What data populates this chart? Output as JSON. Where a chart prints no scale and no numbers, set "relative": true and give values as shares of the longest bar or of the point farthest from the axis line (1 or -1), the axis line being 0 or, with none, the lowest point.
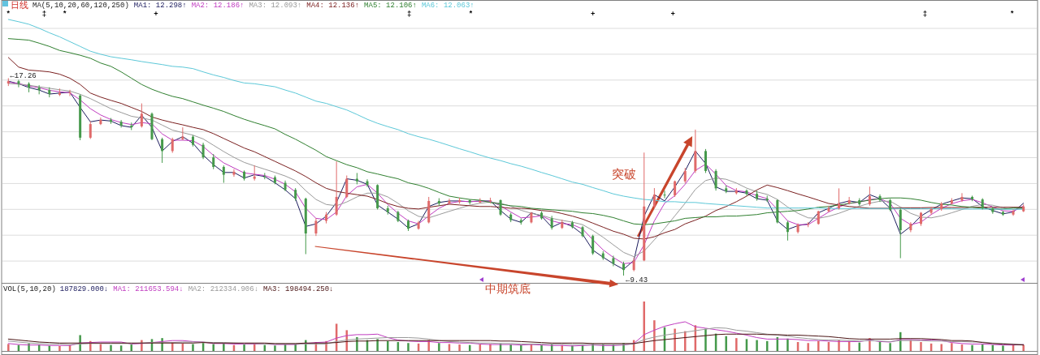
{
  "chart_data": [
    {
      "type": "candlestick",
      "title": "日线",
      "subtitle": "MA(5,10,20,60,120,250)",
      "legend": "top left",
      "grid": "y",
      "categories": [
        null,
        null,
        null,
        null,
        null,
        null,
        null,
        null,
        null,
        null,
        null,
        null,
        null,
        null,
        null,
        null,
        null,
        null,
        null,
        null,
        null,
        null,
        null,
        null,
        null,
        null,
        null,
        null,
        null,
        null,
        null,
        null,
        null,
        null,
        null,
        null,
        null,
        null,
        null,
        null,
        null,
        null,
        null,
        null,
        null,
        null,
        null,
        null,
        null,
        null,
        null,
        null,
        null,
        null,
        null,
        null,
        null,
        null,
        null,
        null,
        null,
        null,
        null,
        null,
        null,
        null,
        null,
        null,
        null,
        null,
        null,
        null,
        null,
        null,
        null,
        null,
        null,
        null,
        null,
        null,
        null,
        null,
        null,
        null,
        null,
        null,
        null,
        null,
        null,
        null,
        null,
        null,
        null,
        null,
        null,
        null,
        null,
        null,
        null,
        null
      ],
      "ohlc": [
        [
          17.05,
          17.26,
          16.95,
          17.14
        ],
        [
          17.14,
          17.2,
          16.9,
          17.04
        ],
        [
          17.04,
          17.1,
          16.7,
          16.89
        ],
        [
          16.89,
          16.98,
          16.62,
          16.79
        ],
        [
          16.79,
          16.9,
          16.5,
          16.63
        ],
        [
          16.6,
          16.85,
          16.55,
          16.67
        ],
        [
          16.67,
          16.8,
          16.55,
          16.7
        ],
        [
          16.57,
          16.62,
          14.8,
          14.9
        ],
        [
          14.9,
          15.55,
          14.85,
          15.44
        ],
        [
          15.44,
          15.7,
          15.4,
          15.6
        ],
        [
          15.6,
          15.68,
          15.45,
          15.53
        ],
        [
          15.53,
          15.6,
          15.3,
          15.38
        ],
        [
          15.38,
          15.5,
          15.2,
          15.31
        ],
        [
          15.35,
          16.26,
          15.3,
          15.85
        ],
        [
          15.85,
          15.9,
          14.8,
          14.84
        ],
        [
          14.84,
          14.9,
          13.9,
          14.37
        ],
        [
          14.37,
          14.9,
          14.3,
          14.84
        ],
        [
          14.84,
          15.31,
          14.8,
          14.94
        ],
        [
          14.94,
          15.0,
          14.55,
          14.62
        ],
        [
          14.62,
          14.7,
          14.05,
          14.12
        ],
        [
          14.12,
          14.25,
          13.65,
          13.74
        ],
        [
          13.74,
          13.8,
          13.11,
          13.43
        ],
        [
          13.43,
          13.65,
          13.35,
          13.55
        ],
        [
          13.55,
          13.6,
          13.2,
          13.27
        ],
        [
          13.27,
          13.8,
          13.2,
          13.36
        ],
        [
          13.36,
          13.5,
          13.25,
          13.33
        ],
        [
          13.33,
          13.4,
          13.05,
          13.11
        ],
        [
          13.11,
          13.2,
          12.78,
          12.83
        ],
        [
          12.83,
          12.9,
          12.4,
          12.48
        ],
        [
          12.48,
          12.52,
          10.28,
          11.1
        ],
        [
          11.1,
          11.7,
          11.0,
          11.6
        ],
        [
          11.6,
          11.95,
          11.5,
          11.85
        ],
        [
          11.85,
          13.96,
          11.8,
          12.55
        ],
        [
          12.55,
          13.4,
          12.5,
          13.27
        ],
        [
          13.27,
          13.5,
          13.05,
          13.17
        ],
        [
          13.17,
          13.25,
          12.95,
          13.02
        ],
        [
          13.02,
          13.05,
          12.05,
          12.1
        ],
        [
          12.1,
          12.2,
          11.85,
          11.95
        ],
        [
          11.95,
          12.0,
          11.55,
          11.6
        ],
        [
          11.6,
          11.65,
          11.2,
          11.29
        ],
        [
          11.29,
          11.6,
          11.25,
          11.54
        ],
        [
          11.54,
          12.55,
          11.5,
          12.39
        ],
        [
          12.39,
          12.5,
          12.2,
          12.29
        ],
        [
          12.29,
          12.48,
          12.25,
          12.39
        ],
        [
          12.35,
          12.52,
          12.28,
          12.42
        ],
        [
          12.42,
          12.45,
          12.25,
          12.33
        ],
        [
          12.33,
          12.5,
          12.3,
          12.39
        ],
        [
          12.39,
          12.52,
          12.3,
          12.42
        ],
        [
          12.42,
          12.45,
          11.8,
          11.85
        ],
        [
          11.85,
          11.92,
          11.55,
          11.63
        ],
        [
          11.63,
          11.7,
          11.45,
          11.54
        ],
        [
          11.54,
          11.95,
          11.5,
          11.92
        ],
        [
          11.92,
          11.98,
          11.65,
          11.7
        ],
        [
          11.7,
          11.8,
          11.25,
          11.32
        ],
        [
          11.32,
          11.65,
          11.28,
          11.54
        ],
        [
          11.54,
          11.6,
          11.3,
          11.35
        ],
        [
          11.35,
          11.4,
          10.95,
          11.0
        ],
        [
          11.0,
          11.05,
          10.25,
          10.31
        ],
        [
          10.31,
          10.4,
          10.05,
          10.12
        ],
        [
          10.12,
          10.22,
          9.8,
          9.9
        ],
        [
          9.9,
          9.98,
          9.43,
          9.65
        ],
        [
          9.65,
          10.15,
          9.6,
          10.03
        ],
        [
          10.03,
          14.31,
          10.0,
          12.17
        ],
        [
          12.17,
          12.9,
          12.1,
          12.64
        ],
        [
          12.64,
          12.8,
          12.5,
          12.61
        ],
        [
          12.61,
          13.2,
          12.55,
          13.17
        ],
        [
          13.17,
          13.7,
          13.1,
          13.58
        ],
        [
          13.58,
          15.22,
          13.5,
          14.37
        ],
        [
          14.37,
          14.45,
          13.5,
          13.58
        ],
        [
          13.58,
          13.65,
          12.8,
          12.89
        ],
        [
          12.89,
          13.0,
          12.7,
          12.77
        ],
        [
          12.7,
          12.9,
          12.65,
          12.8
        ],
        [
          12.8,
          12.85,
          12.6,
          12.67
        ],
        [
          12.67,
          12.8,
          12.4,
          12.48
        ],
        [
          12.48,
          12.6,
          12.35,
          12.42
        ],
        [
          12.42,
          12.45,
          11.5,
          11.54
        ],
        [
          11.54,
          11.6,
          10.82,
          11.16
        ],
        [
          11.16,
          11.5,
          11.1,
          11.45
        ],
        [
          11.45,
          11.55,
          11.35,
          11.48
        ],
        [
          11.48,
          12.0,
          11.45,
          11.98
        ],
        [
          11.98,
          12.2,
          11.95,
          12.1
        ],
        [
          12.1,
          12.89,
          12.05,
          12.29
        ],
        [
          12.29,
          12.55,
          12.25,
          12.42
        ],
        [
          12.42,
          12.5,
          12.2,
          12.26
        ],
        [
          12.26,
          12.96,
          12.2,
          12.58
        ],
        [
          12.58,
          12.65,
          12.35,
          12.42
        ],
        [
          12.42,
          12.48,
          11.98,
          12.04
        ],
        [
          12.04,
          12.1,
          10.12,
          11.23
        ],
        [
          11.23,
          11.55,
          11.15,
          11.48
        ],
        [
          11.48,
          11.95,
          11.4,
          11.92
        ],
        [
          11.92,
          12.15,
          11.85,
          12.07
        ],
        [
          12.07,
          12.35,
          12.0,
          12.29
        ],
        [
          12.29,
          12.5,
          12.25,
          12.42
        ],
        [
          12.42,
          12.7,
          12.35,
          12.55
        ],
        [
          12.55,
          12.6,
          12.38,
          12.45
        ],
        [
          12.45,
          12.5,
          12.05,
          12.1
        ],
        [
          12.1,
          12.15,
          11.88,
          11.95
        ],
        [
          11.95,
          12.0,
          11.8,
          11.85
        ],
        [
          11.85,
          12.05,
          11.8,
          11.98
        ],
        [
          11.98,
          12.25,
          11.95,
          12.17
        ]
      ],
      "colors": [
        "#e06a6a",
        "#45994b",
        "#45994b",
        "#45994b",
        "#45994b",
        "#e06a6a",
        "#e06a6a",
        "#45994b",
        "#e06a6a",
        "#e06a6a",
        "#45994b",
        "#45994b",
        "#45994b",
        "#e06a6a",
        "#45994b",
        "#45994b",
        "#e06a6a",
        "#e06a6a",
        "#45994b",
        "#45994b",
        "#45994b",
        "#45994b",
        "#e06a6a",
        "#45994b",
        "#e06a6a",
        "#45994b",
        "#45994b",
        "#45994b",
        "#45994b",
        "#45994b",
        "#e06a6a",
        "#e06a6a",
        "#e06a6a",
        "#e06a6a",
        "#45994b",
        "#45994b",
        "#45994b",
        "#45994b",
        "#45994b",
        "#45994b",
        "#e06a6a",
        "#e06a6a",
        "#45994b",
        "#e06a6a",
        "#e06a6a",
        "#45994b",
        "#e06a6a",
        "#e06a6a",
        "#45994b",
        "#45994b",
        "#45994b",
        "#e06a6a",
        "#45994b",
        "#45994b",
        "#e06a6a",
        "#45994b",
        "#45994b",
        "#45994b",
        "#45994b",
        "#45994b",
        "#45994b",
        "#e06a6a",
        "#e06a6a",
        "#e06a6a",
        "#45994b",
        "#e06a6a",
        "#e06a6a",
        "#e06a6a",
        "#45994b",
        "#45994b",
        "#45994b",
        "#e06a6a",
        "#45994b",
        "#45994b",
        "#45994b",
        "#45994b",
        "#45994b",
        "#e06a6a",
        "#e06a6a",
        "#e06a6a",
        "#e06a6a",
        "#e06a6a",
        "#e06a6a",
        "#45994b",
        "#e06a6a",
        "#45994b",
        "#45994b",
        "#45994b",
        "#e06a6a",
        "#e06a6a",
        "#e06a6a",
        "#e06a6a",
        "#e06a6a",
        "#e06a6a",
        "#45994b",
        "#45994b",
        "#45994b",
        "#45994b",
        "#e06a6a",
        "#e06a6a"
      ],
      "series": [
        {
          "type": "line",
          "name": "MA1: 12.298↑",
          "color": "#1c1c5e",
          "values": [
            17.14,
            17.04,
            16.89,
            16.79,
            16.63,
            16.67,
            16.7,
            16.1,
            15.53,
            15.6,
            15.56,
            15.38,
            15.31,
            15.79,
            15.31,
            14.37,
            14.75,
            14.94,
            14.68,
            14.21,
            13.83,
            13.52,
            13.52,
            13.3,
            13.43,
            13.36,
            13.11,
            12.83,
            12.48,
            11.38,
            11.48,
            11.79,
            12.33,
            13.27,
            13.21,
            13.05,
            12.23,
            11.95,
            11.67,
            11.32,
            11.48,
            12.17,
            12.33,
            12.39,
            12.39,
            12.36,
            12.39,
            12.39,
            12.01,
            11.67,
            11.54,
            11.92,
            11.79,
            11.35,
            11.54,
            11.38,
            11.07,
            10.44,
            10.16,
            9.9,
            9.68,
            10.03,
            11.79,
            12.64,
            12.39,
            12.95,
            13.58,
            14.37,
            13.87,
            12.95,
            12.77,
            12.77,
            12.7,
            12.48,
            12.42,
            11.6,
            11.26,
            11.41,
            11.48,
            11.92,
            12.1,
            12.29,
            12.39,
            12.33,
            12.64,
            12.48,
            12.1,
            11.07,
            11.38,
            11.79,
            12.04,
            12.26,
            12.39,
            12.51,
            12.48,
            12.17,
            12.01,
            11.88,
            11.95,
            12.3
          ]
        },
        {
          "type": "line",
          "name": "MA2: 12.186↑",
          "color": "#c03cc0",
          "values": [
            17.1,
            17.05,
            16.95,
            16.88,
            16.78,
            16.72,
            16.68,
            16.4,
            16.05,
            15.8,
            15.62,
            15.5,
            15.42,
            15.5,
            15.45,
            15.05,
            14.8,
            14.8,
            14.78,
            14.55,
            14.2,
            13.9,
            13.7,
            13.5,
            13.45,
            13.4,
            13.25,
            13.05,
            12.75,
            12.1,
            11.7,
            11.65,
            11.95,
            12.6,
            12.95,
            13.05,
            12.7,
            12.25,
            11.9,
            11.6,
            11.48,
            11.8,
            12.1,
            12.3,
            12.37,
            12.37,
            12.38,
            12.38,
            12.2,
            11.95,
            11.72,
            11.75,
            11.8,
            11.6,
            11.5,
            11.45,
            11.28,
            10.85,
            10.45,
            10.15,
            9.9,
            9.95,
            10.65,
            11.6,
            12.3,
            12.6,
            13.05,
            13.6,
            13.85,
            13.45,
            13.0,
            12.8,
            12.75,
            12.6,
            12.48,
            12.05,
            11.6,
            11.45,
            11.45,
            11.7,
            11.95,
            12.15,
            12.3,
            12.34,
            12.45,
            12.48,
            12.3,
            11.7,
            11.45,
            11.55,
            11.85,
            12.1,
            12.28,
            12.4,
            12.45,
            12.32,
            12.15,
            12.0,
            11.98,
            12.19
          ]
        },
        {
          "type": "line",
          "name": "MA3: 12.093↑",
          "color": "#9a9a9a",
          "values": [
            17.05,
            17.02,
            16.98,
            16.92,
            16.86,
            16.8,
            16.75,
            16.62,
            16.45,
            16.25,
            16.05,
            15.9,
            15.75,
            15.68,
            15.6,
            15.4,
            15.2,
            15.1,
            15.0,
            14.85,
            14.6,
            14.35,
            14.12,
            13.92,
            13.78,
            13.65,
            13.52,
            13.38,
            13.2,
            12.8,
            12.45,
            12.25,
            12.2,
            12.35,
            12.55,
            12.7,
            12.7,
            12.55,
            12.3,
            12.0,
            11.78,
            11.72,
            11.85,
            11.98,
            12.1,
            12.22,
            12.3,
            12.35,
            12.3,
            12.18,
            12.02,
            11.9,
            11.82,
            11.7,
            11.62,
            11.55,
            11.45,
            11.22,
            10.95,
            10.65,
            10.35,
            10.18,
            10.4,
            10.85,
            11.3,
            11.8,
            12.3,
            12.85,
            13.2,
            13.3,
            13.25,
            13.1,
            12.9,
            12.75,
            12.65,
            12.45,
            12.15,
            11.9,
            11.72,
            11.7,
            11.78,
            11.9,
            12.05,
            12.18,
            12.3,
            12.38,
            12.38,
            12.15,
            11.9,
            11.75,
            11.72,
            11.8,
            11.92,
            12.05,
            12.18,
            12.25,
            12.22,
            12.12,
            12.05,
            12.09
          ]
        },
        {
          "type": "line",
          "name": "MA4: 12.136↑",
          "color": "#7a1f1f",
          "values": [
            18.08,
            17.7,
            17.58,
            17.55,
            17.51,
            17.42,
            17.26,
            17.01,
            16.67,
            16.51,
            16.38,
            16.26,
            16.1,
            15.94,
            15.72,
            15.6,
            15.5,
            15.41,
            15.31,
            15.22,
            15.06,
            14.87,
            14.68,
            14.49,
            14.34,
            14.15,
            13.96,
            13.77,
            13.58,
            13.36,
            13.11,
            12.89,
            12.77,
            12.7,
            12.64,
            12.58,
            12.45,
            12.29,
            12.17,
            12.1,
            12.07,
            12.14,
            12.2,
            12.26,
            12.23,
            12.2,
            12.17,
            12.17,
            12.14,
            12.1,
            12.1,
            12.07,
            12.01,
            11.98,
            11.89,
            11.79,
            11.67,
            11.51,
            11.35,
            11.19,
            11.07,
            10.91,
            10.88,
            10.97,
            11.13,
            11.26,
            11.48,
            11.63,
            11.79,
            12.01,
            12.17,
            12.36,
            12.58,
            12.83,
            13.02,
            12.92,
            12.8,
            12.67,
            12.55,
            12.42,
            12.29,
            12.23,
            12.17,
            12.14,
            12.1,
            12.1,
            12.1,
            12.12,
            12.12,
            12.12,
            12.13,
            12.13,
            12.13,
            12.13,
            12.14,
            12.14,
            12.14,
            12.14,
            12.14,
            12.14
          ]
        },
        {
          "type": "line",
          "name": "MA5: 12.106↑",
          "color": "#2f7f2f",
          "values": [
            18.83,
            18.8,
            18.77,
            18.65,
            18.52,
            18.36,
            18.27,
            18.17,
            18.05,
            17.86,
            17.73,
            17.51,
            17.26,
            17.01,
            16.82,
            16.67,
            16.54,
            16.45,
            16.32,
            16.19,
            16.07,
            15.94,
            15.78,
            15.63,
            15.5,
            15.38,
            15.25,
            15.03,
            14.84,
            14.62,
            14.4,
            14.15,
            13.99,
            13.83,
            13.71,
            13.55,
            13.46,
            13.36,
            13.27,
            13.11,
            13.02,
            12.89,
            12.73,
            12.58,
            12.51,
            12.45,
            12.42,
            12.33,
            12.26,
            12.2,
            12.17,
            12.1,
            12.07,
            12.04,
            12.01,
            11.98,
            11.92,
            11.89,
            11.82,
            11.73,
            11.6,
            11.48,
            11.45,
            11.48,
            11.54,
            11.6,
            11.7,
            11.73,
            11.76,
            11.76,
            11.79,
            11.79,
            11.82,
            11.85,
            11.92,
            11.95,
            11.98,
            12.01,
            12.07,
            12.14,
            12.17,
            12.23,
            12.29,
            12.36,
            12.42,
            12.48,
            12.51,
            12.51,
            12.48,
            12.42,
            12.33,
            12.26,
            12.23,
            12.17,
            12.14,
            12.1,
            12.07,
            12.07,
            12.11,
            12.11
          ]
        },
        {
          "type": "line",
          "name": "MA6: 12.063↑",
          "color": "#5cc8d8",
          "values": [
            19.59,
            19.5,
            19.4,
            19.24,
            19.06,
            18.9,
            18.71,
            18.52,
            18.33,
            18.21,
            18.11,
            18.05,
            17.99,
            17.92,
            17.86,
            17.8,
            17.73,
            17.7,
            17.64,
            17.51,
            17.39,
            17.29,
            17.17,
            17.07,
            17.04,
            16.98,
            16.92,
            16.79,
            16.67,
            16.51,
            16.35,
            16.26,
            16.13,
            16.0,
            15.82,
            15.63,
            15.47,
            15.34,
            15.22,
            15.06,
            14.94,
            14.84,
            14.72,
            14.59,
            14.46,
            14.34,
            14.21,
            14.09,
            13.99,
            13.87,
            13.77,
            13.65,
            13.52,
            13.4,
            13.27,
            13.14,
            13.05,
            12.92,
            12.8,
            12.67,
            12.58,
            12.51,
            12.45,
            12.42,
            12.36,
            12.36,
            12.33,
            12.33,
            12.29,
            12.26,
            12.23,
            12.2,
            12.17,
            12.14,
            12.11,
            12.11,
            12.11,
            12.11,
            12.11,
            12.11,
            12.09,
            12.09,
            12.09,
            12.09,
            12.09,
            12.09,
            12.09,
            12.09,
            12.08,
            12.08,
            12.08,
            12.08,
            12.08,
            12.07,
            12.07,
            12.07,
            12.07,
            12.06,
            12.06,
            12.06
          ]
        }
      ],
      "annotations": [
        "←17.26",
        "←9.43",
        "突破",
        "中期筑底",
        "*",
        "‡",
        "*",
        "+",
        "‡",
        "*",
        "+",
        "+",
        "‡",
        "*"
      ]
    },
    {
      "type": "bar",
      "relative": true,
      "title": "VOL(5,10,20)",
      "subtitle": "187829.000↓",
      "legend": "top left",
      "categories": [
        null,
        null,
        null,
        null,
        null,
        null,
        null,
        null,
        null,
        null,
        null,
        null,
        null,
        null,
        null,
        null,
        null,
        null,
        null,
        null,
        null,
        null,
        null,
        null,
        null,
        null,
        null,
        null,
        null,
        null,
        null,
        null,
        null,
        null,
        null,
        null,
        null,
        null,
        null,
        null,
        null,
        null,
        null,
        null,
        null,
        null,
        null,
        null,
        null,
        null,
        null,
        null,
        null,
        null,
        null,
        null,
        null,
        null,
        null,
        null,
        null,
        null,
        null,
        null,
        null,
        null,
        null,
        null,
        null,
        null,
        null,
        null,
        null,
        null,
        null,
        null,
        null,
        null,
        null,
        null,
        null,
        null,
        null,
        null,
        null,
        null,
        null,
        null,
        null,
        null,
        null,
        null,
        null,
        null,
        null,
        null,
        null,
        null,
        null,
        null
      ],
      "values": [
        0.14,
        0.12,
        0.15,
        0.13,
        0.11,
        0.1,
        0.12,
        0.32,
        0.2,
        0.14,
        0.12,
        0.11,
        0.13,
        0.22,
        0.24,
        0.26,
        0.18,
        0.15,
        0.14,
        0.16,
        0.14,
        0.15,
        0.12,
        0.13,
        0.16,
        0.12,
        0.11,
        0.13,
        0.15,
        0.22,
        0.18,
        0.2,
        0.55,
        0.42,
        0.28,
        0.22,
        0.24,
        0.2,
        0.18,
        0.16,
        0.15,
        0.22,
        0.16,
        0.14,
        0.13,
        0.12,
        0.13,
        0.14,
        0.15,
        0.13,
        0.12,
        0.14,
        0.12,
        0.13,
        0.12,
        0.11,
        0.12,
        0.15,
        0.14,
        0.13,
        0.16,
        0.22,
        1.0,
        0.62,
        0.48,
        0.45,
        0.4,
        0.52,
        0.45,
        0.35,
        0.3,
        0.26,
        0.24,
        0.22,
        0.2,
        0.28,
        0.25,
        0.18,
        0.16,
        0.2,
        0.18,
        0.22,
        0.2,
        0.17,
        0.26,
        0.18,
        0.16,
        0.38,
        0.22,
        0.18,
        0.15,
        0.14,
        0.16,
        0.13,
        0.12,
        0.13,
        0.12,
        0.11,
        0.12,
        0.12
      ],
      "colors": [
        "#e06a6a",
        "#45994b",
        "#45994b",
        "#45994b",
        "#45994b",
        "#e06a6a",
        "#e06a6a",
        "#45994b",
        "#e06a6a",
        "#e06a6a",
        "#45994b",
        "#45994b",
        "#45994b",
        "#e06a6a",
        "#45994b",
        "#45994b",
        "#e06a6a",
        "#e06a6a",
        "#45994b",
        "#45994b",
        "#45994b",
        "#45994b",
        "#e06a6a",
        "#45994b",
        "#e06a6a",
        "#45994b",
        "#45994b",
        "#45994b",
        "#45994b",
        "#45994b",
        "#e06a6a",
        "#e06a6a",
        "#e06a6a",
        "#e06a6a",
        "#45994b",
        "#45994b",
        "#45994b",
        "#45994b",
        "#45994b",
        "#45994b",
        "#e06a6a",
        "#e06a6a",
        "#45994b",
        "#e06a6a",
        "#e06a6a",
        "#45994b",
        "#e06a6a",
        "#e06a6a",
        "#45994b",
        "#45994b",
        "#45994b",
        "#e06a6a",
        "#45994b",
        "#45994b",
        "#e06a6a",
        "#45994b",
        "#45994b",
        "#45994b",
        "#45994b",
        "#45994b",
        "#45994b",
        "#e06a6a",
        "#e06a6a",
        "#e06a6a",
        "#45994b",
        "#e06a6a",
        "#e06a6a",
        "#e06a6a",
        "#45994b",
        "#45994b",
        "#45994b",
        "#e06a6a",
        "#45994b",
        "#45994b",
        "#45994b",
        "#45994b",
        "#45994b",
        "#e06a6a",
        "#e06a6a",
        "#e06a6a",
        "#e06a6a",
        "#e06a6a",
        "#e06a6a",
        "#45994b",
        "#e06a6a",
        "#45994b",
        "#45994b",
        "#45994b",
        "#e06a6a",
        "#e06a6a",
        "#e06a6a",
        "#e06a6a",
        "#e06a6a",
        "#e06a6a",
        "#45994b",
        "#45994b",
        "#45994b",
        "#45994b",
        "#e06a6a",
        "#e06a6a"
      ],
      "series": [
        {
          "type": "line",
          "name": "MA1: 211653.594↓",
          "color": "#c03cc0",
          "values": [
            0.15,
            0.13,
            0.12,
            0.12,
            0.11,
            0.11,
            0.11,
            0.16,
            0.17,
            0.18,
            0.18,
            0.18,
            0.14,
            0.15,
            0.17,
            0.19,
            0.21,
            0.21,
            0.19,
            0.18,
            0.15,
            0.15,
            0.14,
            0.14,
            0.14,
            0.14,
            0.13,
            0.13,
            0.13,
            0.15,
            0.17,
            0.18,
            0.26,
            0.31,
            0.33,
            0.33,
            0.34,
            0.27,
            0.22,
            0.2,
            0.19,
            0.19,
            0.17,
            0.17,
            0.16,
            0.16,
            0.14,
            0.13,
            0.13,
            0.13,
            0.12,
            0.13,
            0.12,
            0.11,
            0.11,
            0.1,
            0.11,
            0.12,
            0.11,
            0.11,
            0.12,
            0.15,
            0.33,
            0.42,
            0.5,
            0.55,
            0.59,
            0.49,
            0.46,
            0.43,
            0.4,
            0.36,
            0.32,
            0.27,
            0.24,
            0.24,
            0.24,
            0.23,
            0.21,
            0.21,
            0.2,
            0.19,
            0.19,
            0.19,
            0.22,
            0.19,
            0.18,
            0.23,
            0.23,
            0.22,
            0.22,
            0.21,
            0.17,
            0.15,
            0.14,
            0.14,
            0.13,
            0.12,
            0.12,
            0.13
          ]
        },
        {
          "type": "line",
          "name": "MA2: 212334.906↓",
          "color": "#9a9a9a",
          "values": [
            0.2,
            0.18,
            0.16,
            0.15,
            0.14,
            0.14,
            0.13,
            0.14,
            0.15,
            0.15,
            0.15,
            0.15,
            0.15,
            0.16,
            0.17,
            0.17,
            0.17,
            0.18,
            0.18,
            0.18,
            0.17,
            0.17,
            0.16,
            0.15,
            0.15,
            0.14,
            0.14,
            0.14,
            0.14,
            0.14,
            0.14,
            0.14,
            0.19,
            0.22,
            0.24,
            0.25,
            0.26,
            0.27,
            0.27,
            0.27,
            0.26,
            0.24,
            0.21,
            0.19,
            0.18,
            0.17,
            0.16,
            0.16,
            0.15,
            0.15,
            0.14,
            0.14,
            0.14,
            0.14,
            0.14,
            0.13,
            0.13,
            0.13,
            0.13,
            0.13,
            0.13,
            0.14,
            0.23,
            0.28,
            0.32,
            0.35,
            0.38,
            0.41,
            0.44,
            0.47,
            0.46,
            0.42,
            0.4,
            0.37,
            0.34,
            0.32,
            0.3,
            0.27,
            0.25,
            0.23,
            0.22,
            0.22,
            0.21,
            0.2,
            0.21,
            0.2,
            0.19,
            0.21,
            0.21,
            0.21,
            0.2,
            0.2,
            0.19,
            0.19,
            0.18,
            0.18,
            0.16,
            0.15,
            0.14,
            0.13
          ]
        },
        {
          "type": "line",
          "name": "MA3: 198494.250↓",
          "color": "#4a1414",
          "values": [
            0.24,
            0.22,
            0.2,
            0.18,
            0.17,
            0.16,
            0.16,
            0.16,
            0.16,
            0.16,
            0.16,
            0.16,
            0.16,
            0.16,
            0.16,
            0.16,
            0.16,
            0.16,
            0.16,
            0.17,
            0.16,
            0.16,
            0.16,
            0.16,
            0.16,
            0.16,
            0.15,
            0.15,
            0.15,
            0.16,
            0.16,
            0.16,
            0.17,
            0.19,
            0.2,
            0.2,
            0.21,
            0.21,
            0.21,
            0.21,
            0.21,
            0.21,
            0.21,
            0.21,
            0.21,
            0.21,
            0.21,
            0.21,
            0.2,
            0.2,
            0.19,
            0.18,
            0.17,
            0.16,
            0.16,
            0.16,
            0.16,
            0.15,
            0.15,
            0.15,
            0.15,
            0.15,
            0.18,
            0.21,
            0.23,
            0.25,
            0.27,
            0.29,
            0.31,
            0.33,
            0.34,
            0.34,
            0.34,
            0.34,
            0.33,
            0.33,
            0.32,
            0.32,
            0.31,
            0.3,
            0.29,
            0.27,
            0.25,
            0.24,
            0.24,
            0.24,
            0.24,
            0.25,
            0.25,
            0.25,
            0.24,
            0.23,
            0.21,
            0.21,
            0.2,
            0.17,
            0.15,
            0.14,
            0.13,
            0.12
          ]
        }
      ]
    }
  ]
}
